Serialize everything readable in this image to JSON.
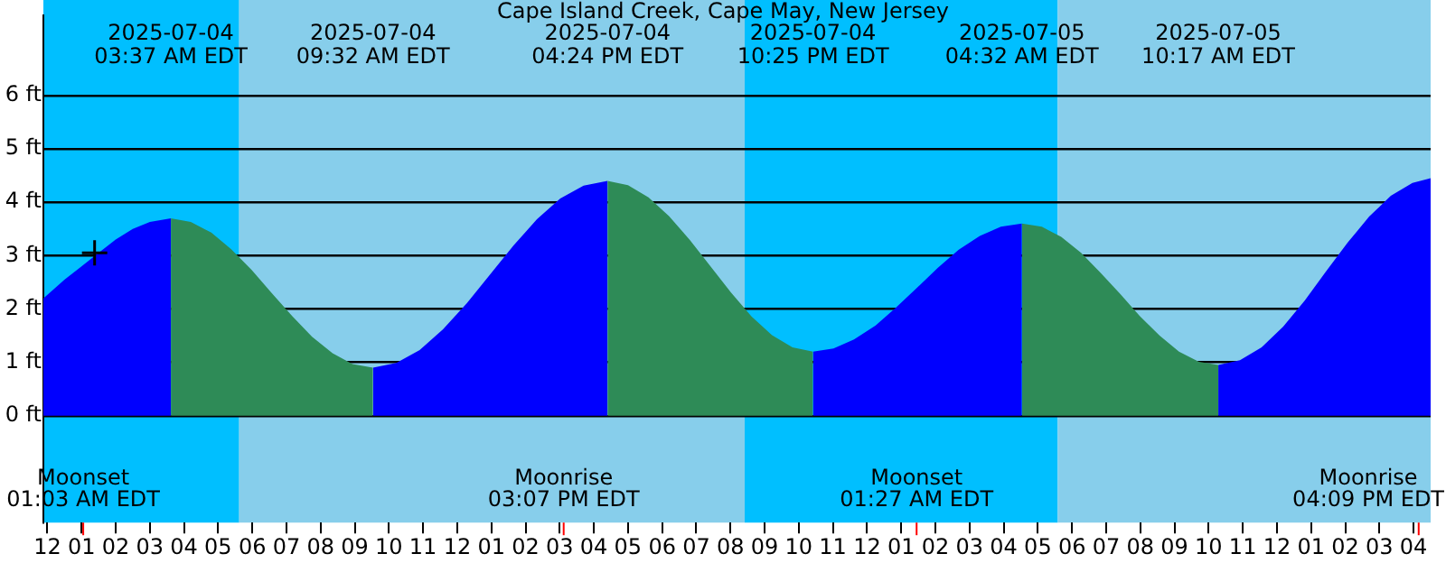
{
  "chart_data": {
    "type": "area",
    "title": "Cape Island Creek, Cape May, New Jersey",
    "xlim": [
      "2025-07-03T23:53",
      "2025-07-05T16:30"
    ],
    "xticks": [
      {
        "value": "2025-07-04T00:00",
        "label": "12"
      },
      {
        "value": "2025-07-04T01:00",
        "label": "01"
      },
      {
        "value": "2025-07-04T02:00",
        "label": "02"
      },
      {
        "value": "2025-07-04T03:00",
        "label": "03"
      },
      {
        "value": "2025-07-04T04:00",
        "label": "04"
      },
      {
        "value": "2025-07-04T05:00",
        "label": "05"
      },
      {
        "value": "2025-07-04T06:00",
        "label": "06"
      },
      {
        "value": "2025-07-04T07:00",
        "label": "07"
      },
      {
        "value": "2025-07-04T08:00",
        "label": "08"
      },
      {
        "value": "2025-07-04T09:00",
        "label": "09"
      },
      {
        "value": "2025-07-04T10:00",
        "label": "10"
      },
      {
        "value": "2025-07-04T11:00",
        "label": "11"
      },
      {
        "value": "2025-07-04T12:00",
        "label": "12"
      },
      {
        "value": "2025-07-04T13:00",
        "label": "01"
      },
      {
        "value": "2025-07-04T14:00",
        "label": "02"
      },
      {
        "value": "2025-07-04T15:00",
        "label": "03"
      },
      {
        "value": "2025-07-04T16:00",
        "label": "04"
      },
      {
        "value": "2025-07-04T17:00",
        "label": "05"
      },
      {
        "value": "2025-07-04T18:00",
        "label": "06"
      },
      {
        "value": "2025-07-04T19:00",
        "label": "07"
      },
      {
        "value": "2025-07-04T20:00",
        "label": "08"
      },
      {
        "value": "2025-07-04T21:00",
        "label": "09"
      },
      {
        "value": "2025-07-04T22:00",
        "label": "10"
      },
      {
        "value": "2025-07-04T23:00",
        "label": "11"
      },
      {
        "value": "2025-07-05T00:00",
        "label": "12"
      },
      {
        "value": "2025-07-05T01:00",
        "label": "01"
      },
      {
        "value": "2025-07-05T02:00",
        "label": "02"
      },
      {
        "value": "2025-07-05T03:00",
        "label": "03"
      },
      {
        "value": "2025-07-05T04:00",
        "label": "04"
      },
      {
        "value": "2025-07-05T05:00",
        "label": "05"
      },
      {
        "value": "2025-07-05T06:00",
        "label": "06"
      },
      {
        "value": "2025-07-05T07:00",
        "label": "07"
      },
      {
        "value": "2025-07-05T08:00",
        "label": "08"
      },
      {
        "value": "2025-07-05T09:00",
        "label": "09"
      },
      {
        "value": "2025-07-05T10:00",
        "label": "10"
      },
      {
        "value": "2025-07-05T11:00",
        "label": "11"
      },
      {
        "value": "2025-07-05T12:00",
        "label": "12"
      },
      {
        "value": "2025-07-05T13:00",
        "label": "01"
      },
      {
        "value": "2025-07-05T14:00",
        "label": "02"
      },
      {
        "value": "2025-07-05T15:00",
        "label": "03"
      },
      {
        "value": "2025-07-05T16:00",
        "label": "04"
      }
    ],
    "ylim": [
      -2,
      7.5
    ],
    "yticks": [
      {
        "value": 0,
        "label": "0 ft"
      },
      {
        "value": 1,
        "label": "1 ft"
      },
      {
        "value": 2,
        "label": "2 ft"
      },
      {
        "value": 3,
        "label": "3 ft"
      },
      {
        "value": 4,
        "label": "4 ft"
      },
      {
        "value": 5,
        "label": "5 ft"
      },
      {
        "value": 6,
        "label": "6 ft"
      }
    ],
    "grid": "y",
    "series": [
      {
        "color": "#0000ff",
        "x": [
          "2025-07-03T23:53",
          "2025-07-04T00:30",
          "2025-07-04T01:00",
          "2025-07-04T01:30",
          "2025-07-04T02:00",
          "2025-07-04T02:30",
          "2025-07-04T03:00",
          "2025-07-04T03:37"
        ],
        "values": [
          2.2,
          2.55,
          2.8,
          3.05,
          3.3,
          3.5,
          3.63,
          3.7
        ]
      },
      {
        "color": "#2e8b57",
        "x": [
          "2025-07-04T03:37",
          "2025-07-04T04:12",
          "2025-07-04T04:48",
          "2025-07-04T05:23",
          "2025-07-04T05:59",
          "2025-07-04T06:34",
          "2025-07-04T07:10",
          "2025-07-04T07:45",
          "2025-07-04T08:21",
          "2025-07-04T08:56",
          "2025-07-04T09:32"
        ],
        "values": [
          3.7,
          3.63,
          3.43,
          3.12,
          2.73,
          2.3,
          1.87,
          1.48,
          1.17,
          0.97,
          0.9
        ]
      },
      {
        "color": "#0000ff",
        "x": [
          "2025-07-04T09:32",
          "2025-07-04T10:13",
          "2025-07-04T10:54",
          "2025-07-04T11:35",
          "2025-07-04T12:17",
          "2025-07-04T12:58",
          "2025-07-04T13:39",
          "2025-07-04T14:20",
          "2025-07-04T15:01",
          "2025-07-04T15:42",
          "2025-07-04T16:24"
        ],
        "values": [
          0.9,
          0.99,
          1.23,
          1.62,
          2.11,
          2.65,
          3.19,
          3.68,
          4.07,
          4.31,
          4.4
        ]
      },
      {
        "color": "#2e8b57",
        "x": [
          "2025-07-04T16:24",
          "2025-07-04T17:00",
          "2025-07-04T17:36",
          "2025-07-04T18:12",
          "2025-07-04T18:49",
          "2025-07-04T19:25",
          "2025-07-04T20:01",
          "2025-07-04T20:37",
          "2025-07-04T21:13",
          "2025-07-04T21:49",
          "2025-07-04T22:25"
        ],
        "values": [
          4.4,
          4.32,
          4.09,
          3.74,
          3.29,
          2.8,
          2.31,
          1.86,
          1.51,
          1.28,
          1.2
        ]
      },
      {
        "color": "#0000ff",
        "x": [
          "2025-07-04T22:25",
          "2025-07-04T23:01",
          "2025-07-04T23:37",
          "2025-07-05T00:15",
          "2025-07-05T00:51",
          "2025-07-05T01:28",
          "2025-07-05T02:04",
          "2025-07-05T02:41",
          "2025-07-05T03:18",
          "2025-07-05T03:55",
          "2025-07-05T04:32"
        ],
        "values": [
          1.2,
          1.26,
          1.43,
          1.69,
          2.03,
          2.4,
          2.77,
          3.11,
          3.37,
          3.54,
          3.6
        ]
      },
      {
        "color": "#2e8b57",
        "x": [
          "2025-07-05T04:32",
          "2025-07-05T05:07",
          "2025-07-05T05:41",
          "2025-07-05T06:16",
          "2025-07-05T06:50",
          "2025-07-05T07:25",
          "2025-07-05T07:59",
          "2025-07-05T08:34",
          "2025-07-05T09:08",
          "2025-07-05T09:43",
          "2025-07-05T10:17"
        ],
        "values": [
          3.6,
          3.54,
          3.35,
          3.05,
          2.68,
          2.28,
          1.87,
          1.5,
          1.2,
          1.01,
          0.95
        ]
      },
      {
        "color": "#0000ff",
        "x": [
          "2025-07-05T10:17",
          "2025-07-05T10:55",
          "2025-07-05T11:33",
          "2025-07-05T12:11",
          "2025-07-05T12:49",
          "2025-07-05T13:26",
          "2025-07-05T14:04",
          "2025-07-05T14:42",
          "2025-07-05T15:20",
          "2025-07-05T15:58",
          "2025-07-05T16:30"
        ],
        "values": [
          0.95,
          1.04,
          1.28,
          1.67,
          2.16,
          2.7,
          3.24,
          3.73,
          4.12,
          4.36,
          4.45
        ]
      },
      {
        "type": "scatter",
        "marker": "cross",
        "color": "#000000",
        "x": [
          "2025-07-04T01:23"
        ],
        "values": [
          3.05
        ]
      }
    ],
    "bands": [
      {
        "axis": "x",
        "from": "2025-07-03T23:53",
        "to": "2025-07-04T05:37",
        "color": "#00bfff"
      },
      {
        "axis": "x",
        "from": "2025-07-04T05:37",
        "to": "2025-07-04T20:25",
        "color": "#87ceeb"
      },
      {
        "axis": "x",
        "from": "2025-07-04T20:25",
        "to": "2025-07-05T05:35",
        "color": "#00bfff"
      },
      {
        "axis": "x",
        "from": "2025-07-05T05:35",
        "to": "2025-07-05T16:30",
        "color": "#87ceeb"
      }
    ],
    "ref_lines": [
      {
        "axis": "x",
        "value": "2025-07-04T01:03",
        "label": "Moonset\n01:03 AM EDT",
        "color": "#ff0000"
      },
      {
        "axis": "x",
        "value": "2025-07-04T15:07",
        "label": "Moonrise\n03:07 PM EDT",
        "color": "#ff0000"
      },
      {
        "axis": "x",
        "value": "2025-07-05T01:27",
        "label": "Moonset\n01:27 AM EDT",
        "color": "#ff0000"
      },
      {
        "axis": "x",
        "value": "2025-07-05T16:09",
        "label": "Moonrise\n04:09 PM EDT",
        "color": "#ff0000"
      }
    ],
    "annotations": [
      "2025-07-04\n03:37 AM EDT",
      "2025-07-04\n09:32 AM EDT",
      "2025-07-04\n04:24 PM EDT",
      "2025-07-04\n10:25 PM EDT",
      "2025-07-05\n04:32 AM EDT",
      "2025-07-05\n10:17 AM EDT"
    ],
    "legend": false
  }
}
